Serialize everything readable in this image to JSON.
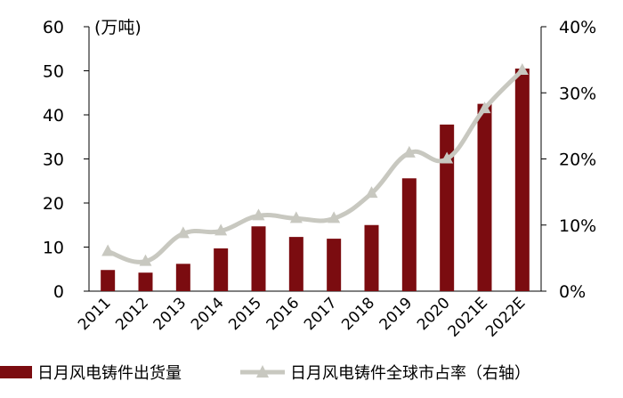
{
  "chart_data": {
    "type": "bar",
    "title": "",
    "unit_label": "(万吨)",
    "categories": [
      "2011",
      "2012",
      "2013",
      "2014",
      "2015",
      "2016",
      "2017",
      "2018",
      "2019",
      "2020",
      "2021E",
      "2022E"
    ],
    "y_left": {
      "ticks": [
        "0",
        "10",
        "20",
        "30",
        "40",
        "50",
        "60"
      ],
      "ylim": [
        0,
        60
      ]
    },
    "y_right": {
      "ticks": [
        "0%",
        "10%",
        "20%",
        "30%",
        "40%"
      ],
      "ylim": [
        0,
        0.4
      ]
    },
    "series": [
      {
        "name": "日月风电铸件出货量",
        "type": "bar",
        "axis": "left",
        "color": "#7B0C10",
        "values": [
          4.8,
          4.2,
          6.2,
          9.7,
          14.7,
          12.3,
          11.9,
          15.0,
          25.6,
          37.8,
          42.5,
          50.5
        ]
      },
      {
        "name": "日月风电铸件全球市占率（右轴）",
        "type": "line",
        "axis": "right",
        "color": "#C8C8C0",
        "values": [
          0.06,
          0.045,
          0.087,
          0.091,
          0.114,
          0.11,
          0.11,
          0.148,
          0.209,
          0.2,
          0.276,
          0.334
        ]
      }
    ],
    "grid": false,
    "legend": "bottom"
  }
}
